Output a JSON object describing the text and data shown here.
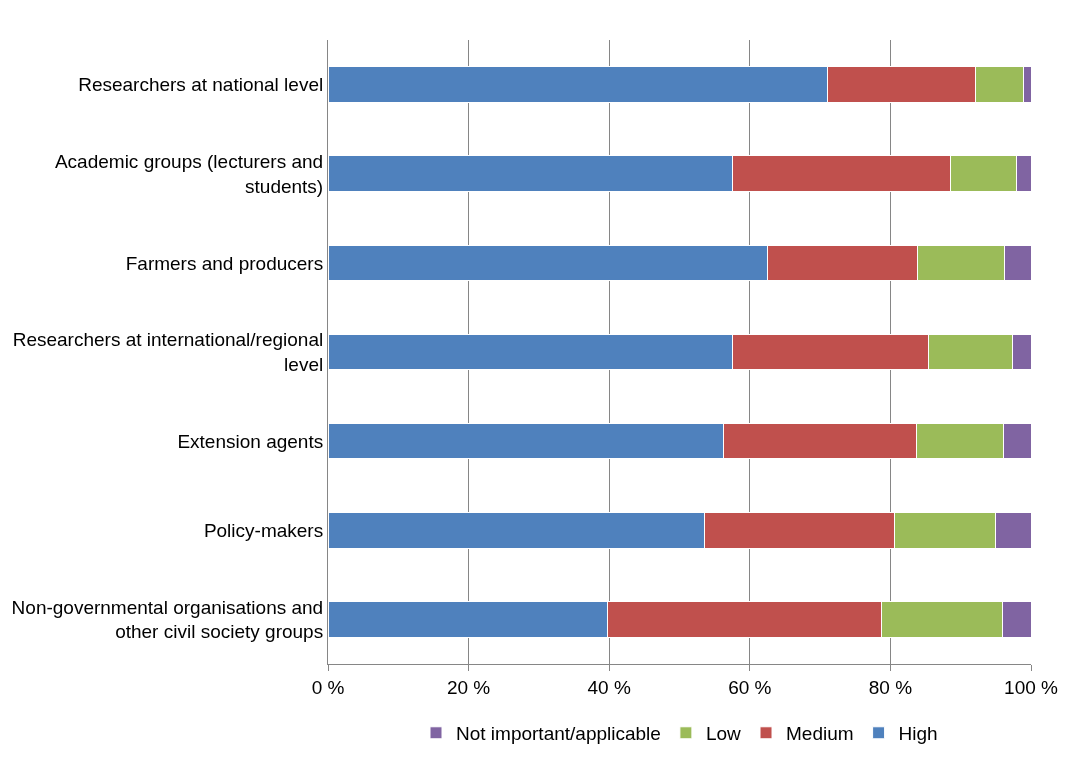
{
  "chart_data": {
    "type": "bar",
    "orientation": "horizontal",
    "stacked": true,
    "categories": [
      "Researchers at national level",
      "Academic groups (lecturers and students)",
      "Farmers and producers",
      "Researchers at international/regional level",
      "Extension agents",
      "Policy-makers",
      "Non-governmental organisations and other civil society groups"
    ],
    "series": [
      {
        "name": "High",
        "color": "#4f81bd",
        "values": [
          71.1,
          57.5,
          62.5,
          57.5,
          56.2,
          53.6,
          39.8
        ]
      },
      {
        "name": "Medium",
        "color": "#c0504d",
        "values": [
          21.0,
          31.1,
          21.4,
          27.9,
          27.5,
          27.0,
          38.9
        ]
      },
      {
        "name": "Low",
        "color": "#9bbb59",
        "values": [
          6.9,
          9.4,
          12.4,
          12.0,
          12.4,
          14.4,
          17.2
        ]
      },
      {
        "name": "Not important/applicable",
        "color": "#8064a2",
        "values": [
          1.0,
          2.0,
          3.7,
          2.6,
          3.9,
          5.0,
          4.1
        ]
      }
    ],
    "xlim": [
      0,
      100
    ],
    "xticks": [
      {
        "value": 0,
        "label": "0 %"
      },
      {
        "value": 20,
        "label": "20 %"
      },
      {
        "value": 40,
        "label": "40 %"
      },
      {
        "value": 60,
        "label": "60 %"
      },
      {
        "value": 80,
        "label": "80 %"
      },
      {
        "value": 100,
        "label": "100 %"
      }
    ],
    "grid": "x",
    "legend": "bottom"
  }
}
